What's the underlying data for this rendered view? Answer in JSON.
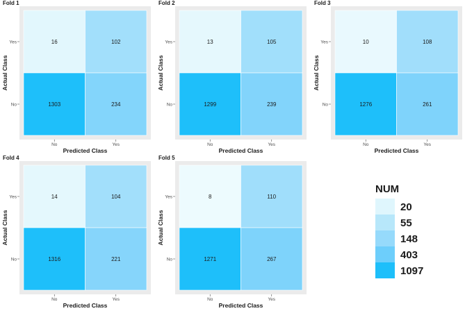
{
  "chart_data": [
    {
      "type": "heatmap",
      "title": "Fold 1",
      "xlabel": "Predicted Class",
      "ylabel": "Actual Class",
      "x_categories": [
        "No",
        "Yes"
      ],
      "y_categories": [
        "No",
        "Yes"
      ],
      "cells": [
        {
          "actual": "Yes",
          "predicted": "No",
          "value": 16
        },
        {
          "actual": "Yes",
          "predicted": "Yes",
          "value": 102
        },
        {
          "actual": "No",
          "predicted": "No",
          "value": 1303
        },
        {
          "actual": "No",
          "predicted": "Yes",
          "value": 234
        }
      ]
    },
    {
      "type": "heatmap",
      "title": "Fold 2",
      "xlabel": "Predicted Class",
      "ylabel": "Actual Class",
      "x_categories": [
        "No",
        "Yes"
      ],
      "y_categories": [
        "No",
        "Yes"
      ],
      "cells": [
        {
          "actual": "Yes",
          "predicted": "No",
          "value": 13
        },
        {
          "actual": "Yes",
          "predicted": "Yes",
          "value": 105
        },
        {
          "actual": "No",
          "predicted": "No",
          "value": 1299
        },
        {
          "actual": "No",
          "predicted": "Yes",
          "value": 239
        }
      ]
    },
    {
      "type": "heatmap",
      "title": "Fold 3",
      "xlabel": "Predicted Class",
      "ylabel": "Actual Class",
      "x_categories": [
        "No",
        "Yes"
      ],
      "y_categories": [
        "No",
        "Yes"
      ],
      "cells": [
        {
          "actual": "Yes",
          "predicted": "No",
          "value": 10
        },
        {
          "actual": "Yes",
          "predicted": "Yes",
          "value": 108
        },
        {
          "actual": "No",
          "predicted": "No",
          "value": 1276
        },
        {
          "actual": "No",
          "predicted": "Yes",
          "value": 261
        }
      ]
    },
    {
      "type": "heatmap",
      "title": "Fold 4",
      "xlabel": "Predicted Class",
      "ylabel": "Actual Class",
      "x_categories": [
        "No",
        "Yes"
      ],
      "y_categories": [
        "No",
        "Yes"
      ],
      "cells": [
        {
          "actual": "Yes",
          "predicted": "No",
          "value": 14
        },
        {
          "actual": "Yes",
          "predicted": "Yes",
          "value": 104
        },
        {
          "actual": "No",
          "predicted": "No",
          "value": 1316
        },
        {
          "actual": "No",
          "predicted": "Yes",
          "value": 221
        }
      ]
    },
    {
      "type": "heatmap",
      "title": "Fold 5",
      "xlabel": "Predicted Class",
      "ylabel": "Actual Class",
      "x_categories": [
        "No",
        "Yes"
      ],
      "y_categories": [
        "No",
        "Yes"
      ],
      "cells": [
        {
          "actual": "Yes",
          "predicted": "No",
          "value": 8
        },
        {
          "actual": "Yes",
          "predicted": "Yes",
          "value": 110
        },
        {
          "actual": "No",
          "predicted": "No",
          "value": 1271
        },
        {
          "actual": "No",
          "predicted": "Yes",
          "value": 267
        }
      ]
    }
  ],
  "legend": {
    "title": "NUM",
    "breaks": [
      20,
      55,
      148,
      403,
      1097
    ],
    "colors": [
      "#dff6fd",
      "#b7e7fa",
      "#96dafb",
      "#6dcefb",
      "#1ebffa"
    ]
  },
  "colors": {
    "panel_background": "#ebebeb",
    "text": "#1a1a1a",
    "tick": "#4d4d4d",
    "cell_border": "#ffffff"
  }
}
